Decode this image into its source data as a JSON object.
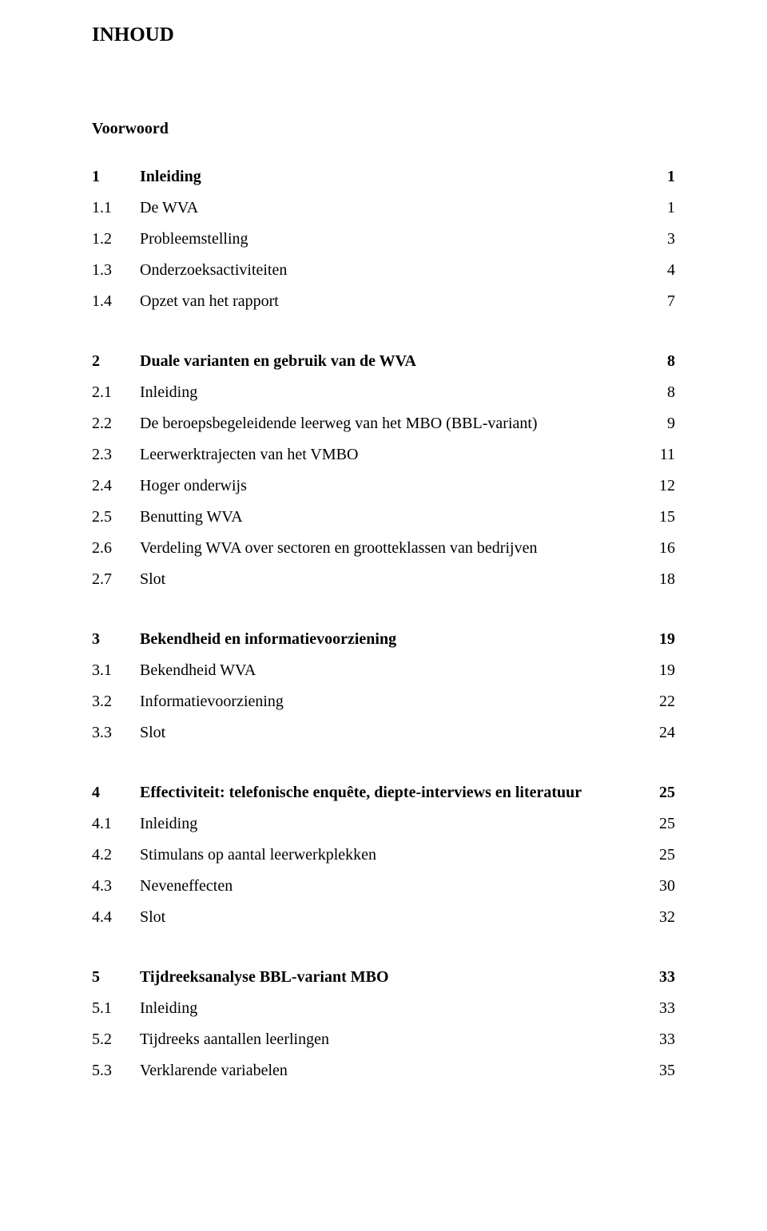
{
  "title": "INHOUD",
  "voorwoord": "Voorwoord",
  "sections": [
    {
      "head": {
        "num": "1",
        "label": "Inleiding",
        "page": "1"
      },
      "items": [
        {
          "num": "1.1",
          "label": "De WVA",
          "page": "1"
        },
        {
          "num": "1.2",
          "label": "Probleemstelling",
          "page": "3"
        },
        {
          "num": "1.3",
          "label": "Onderzoeksactiviteiten",
          "page": "4"
        },
        {
          "num": "1.4",
          "label": "Opzet van het rapport",
          "page": "7"
        }
      ]
    },
    {
      "head": {
        "num": "2",
        "label": "Duale varianten en gebruik van de WVA",
        "page": "8"
      },
      "items": [
        {
          "num": "2.1",
          "label": "Inleiding",
          "page": "8"
        },
        {
          "num": "2.2",
          "label": "De beroepsbegeleidende leerweg van het MBO (BBL-variant)",
          "page": "9"
        },
        {
          "num": "2.3",
          "label": "Leerwerktrajecten van het VMBO",
          "page": "11"
        },
        {
          "num": "2.4",
          "label": "Hoger onderwijs",
          "page": "12"
        },
        {
          "num": "2.5",
          "label": "Benutting WVA",
          "page": "15"
        },
        {
          "num": "2.6",
          "label": "Verdeling WVA over sectoren en grootteklassen van bedrijven",
          "page": "16"
        },
        {
          "num": "2.7",
          "label": "Slot",
          "page": "18"
        }
      ]
    },
    {
      "head": {
        "num": "3",
        "label": "Bekendheid en informatievoorziening",
        "page": "19"
      },
      "items": [
        {
          "num": "3.1",
          "label": "Bekendheid WVA",
          "page": "19"
        },
        {
          "num": "3.2",
          "label": "Informatievoorziening",
          "page": "22"
        },
        {
          "num": "3.3",
          "label": "Slot",
          "page": "24"
        }
      ]
    },
    {
      "head": {
        "num": "4",
        "label": "Effectiviteit: telefonische enquête, diepte-interviews en literatuur",
        "page": "25"
      },
      "items": [
        {
          "num": "4.1",
          "label": "Inleiding",
          "page": "25"
        },
        {
          "num": "4.2",
          "label": "Stimulans op aantal leerwerkplekken",
          "page": "25"
        },
        {
          "num": "4.3",
          "label": "Neveneffecten",
          "page": "30"
        },
        {
          "num": "4.4",
          "label": "Slot",
          "page": "32"
        }
      ]
    },
    {
      "head": {
        "num": "5",
        "label": "Tijdreeksanalyse BBL-variant MBO",
        "page": "33"
      },
      "items": [
        {
          "num": "5.1",
          "label": "Inleiding",
          "page": "33"
        },
        {
          "num": "5.2",
          "label": "Tijdreeks aantallen leerlingen",
          "page": "33"
        },
        {
          "num": "5.3",
          "label": "Verklarende variabelen",
          "page": "35"
        }
      ]
    }
  ]
}
